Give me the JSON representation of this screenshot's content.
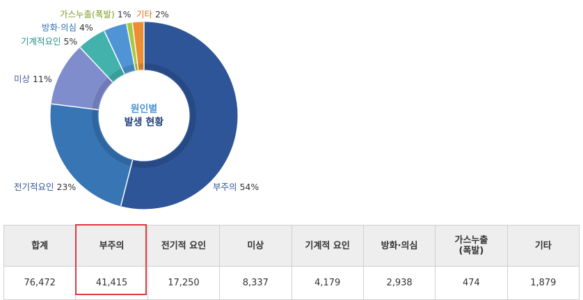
{
  "chart_data": {
    "type": "pie",
    "center_title_line1": "원인별",
    "center_title_line2": "발생 현황",
    "slices": [
      {
        "label": "부주의",
        "value": 54,
        "display": "부주의 54%",
        "color": "#2e5597",
        "label_color": "#2e5597"
      },
      {
        "label": "전기적요인",
        "value": 23,
        "display": "전기적요인 23%",
        "color": "#3775b5",
        "label_color": "#2e5597"
      },
      {
        "label": "미상",
        "value": 11,
        "display": "미상 11%",
        "color": "#7f8dcd",
        "label_color": "#4a5aa8"
      },
      {
        "label": "기계적요인",
        "value": 5,
        "display": "기계적요인 5%",
        "color": "#43b2ad",
        "label_color": "#1f8f8a"
      },
      {
        "label": "방화·의심",
        "value": 4,
        "display": "방화·의심 4%",
        "color": "#4f95d5",
        "label_color": "#2f6fb0"
      },
      {
        "label": "가스누출(폭발)",
        "value": 1,
        "display": "가스누출(폭발) 1%",
        "color": "#a6c93d",
        "label_color": "#7a9a1e"
      },
      {
        "label": "기타",
        "value": 2,
        "display": "기타 2%",
        "color": "#ec8e34",
        "label_color": "#d4731a"
      }
    ]
  },
  "table": {
    "headers": [
      "합계",
      "부주의",
      "전기적 요인",
      "미상",
      "기계적 요인",
      "방화·의심",
      "가스누출\n(폭발)",
      "기타"
    ],
    "values": [
      "76,472",
      "41,415",
      "17,250",
      "8,337",
      "4,179",
      "2,938",
      "474",
      "1,879"
    ],
    "highlight_column": "부주의"
  }
}
